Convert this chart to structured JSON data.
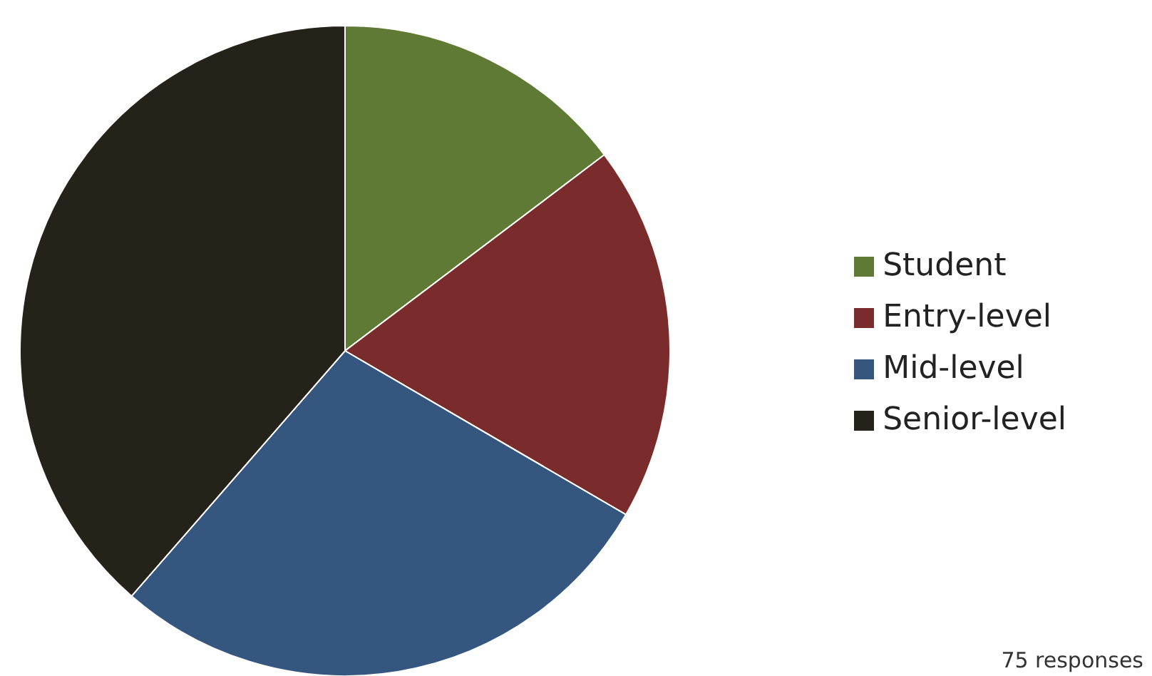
{
  "chart_data": {
    "type": "pie",
    "categories": [
      "Student",
      "Entry-level",
      "Mid-level",
      "Senior-level"
    ],
    "values": [
      14.7,
      18.7,
      28,
      38.6
    ],
    "colors": [
      "#5e7a34",
      "#7a2b2b",
      "#35567f",
      "#25221a"
    ],
    "legend": "right",
    "annotations": [
      "75 responses"
    ]
  }
}
